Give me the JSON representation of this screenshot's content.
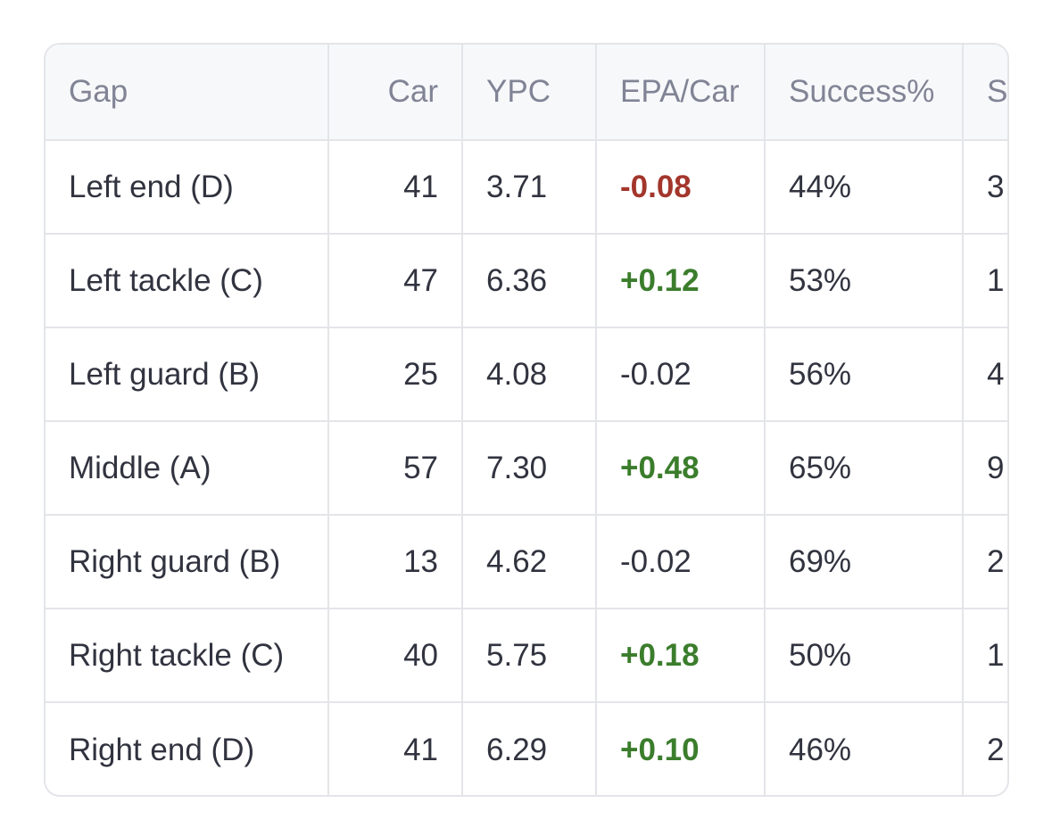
{
  "table": {
    "columns": [
      "Gap",
      "Car",
      "YPC",
      "EPA/Car",
      "Success%",
      "St"
    ],
    "rows": [
      [
        "Left end (D)",
        "41",
        "3.71",
        "-0.08",
        "44%",
        "3"
      ],
      [
        "Left tackle (C)",
        "47",
        "6.36",
        "+0.12",
        "53%",
        "1"
      ],
      [
        "Left guard (B)",
        "25",
        "4.08",
        "-0.02",
        "56%",
        "4"
      ],
      [
        "Middle (A)",
        "57",
        "7.30",
        "+0.48",
        "65%",
        "9"
      ],
      [
        "Right guard (B)",
        "13",
        "4.62",
        "-0.02",
        "69%",
        "2"
      ],
      [
        "Right tackle (C)",
        "40",
        "5.75",
        "+0.18",
        "50%",
        "1"
      ],
      [
        "Right end (D)",
        "41",
        "6.29",
        "+0.10",
        "46%",
        "2"
      ]
    ],
    "epa_colors": [
      "#a3362c",
      "#3b7d2c",
      null,
      "#3b7d2c",
      null,
      "#3b7d2c",
      "#3b7d2c"
    ]
  }
}
